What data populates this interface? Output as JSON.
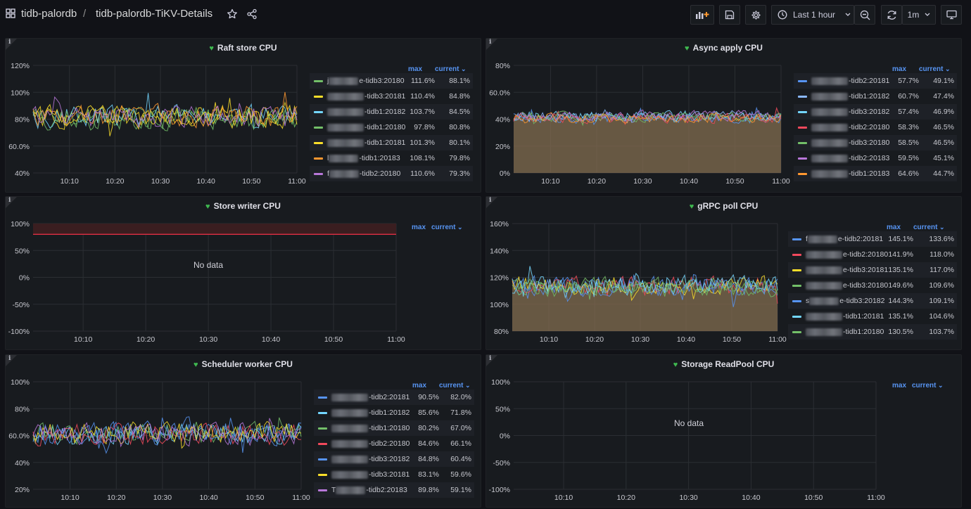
{
  "topbar": {
    "breadcrumb_folder": "tidb-palordb",
    "breadcrumb_separator": "/",
    "dashboard_title": "tidb-palordb-TiKV-Details",
    "time_range": "Last 1 hour",
    "refresh_interval": "1m"
  },
  "icons": {
    "apps": "grid-icon",
    "star": "star-icon",
    "share": "share-icon",
    "add_panel": "add-panel-icon",
    "save": "save-icon",
    "settings": "gear-icon",
    "clock": "clock-icon",
    "zoom_out": "zoom-out-icon",
    "refresh": "refresh-icon",
    "tv": "tv-mode-icon"
  },
  "colors": {
    "green": "#73bf69",
    "yellow": "#fade2a",
    "blue": "#5794f2",
    "light_blue": "#8ab8ff",
    "red": "#f2495c",
    "orange": "#ff9830",
    "purple": "#b877d9",
    "cyan": "#73d6ff"
  },
  "legend_headers": {
    "max": "max",
    "current": "current"
  },
  "panels": [
    {
      "id": "raft-store-cpu",
      "title": "Raft store CPU",
      "y_ticks": [
        "120%",
        "100%",
        "80%",
        "60.0%",
        "40%"
      ],
      "x_ticks": [
        "10:10",
        "10:20",
        "10:30",
        "10:40",
        "10:50",
        "11:00"
      ],
      "legend": [
        {
          "name": "-tidb3:20180",
          "prefix": "j",
          "mid": "e",
          "color": "#73bf69",
          "max": "111.6%",
          "current": "88.1%"
        },
        {
          "name": "-tidb3:20181",
          "prefix": "",
          "mid": "",
          "color": "#fade2a",
          "max": "110.4%",
          "current": "84.8%"
        },
        {
          "name": "-tidb1:20182",
          "prefix": "",
          "mid": "",
          "color": "#73d6ff",
          "max": "103.7%",
          "current": "84.5%"
        },
        {
          "name": "-tidb1:20180",
          "prefix": "",
          "mid": "",
          "color": "#73bf69",
          "max": "97.8%",
          "current": "80.8%"
        },
        {
          "name": "-tidb1:20181",
          "prefix": "",
          "mid": "",
          "color": "#fade2a",
          "max": "101.3%",
          "current": "80.1%"
        },
        {
          "name": "-tidb1:20183",
          "prefix": "l",
          "mid": "",
          "color": "#ff9830",
          "max": "108.1%",
          "current": "79.8%"
        },
        {
          "name": "-tidb2:20180",
          "prefix": "f",
          "mid": "",
          "color": "#b877d9",
          "max": "110.6%",
          "current": "79.3%"
        }
      ]
    },
    {
      "id": "async-apply-cpu",
      "title": "Async apply CPU",
      "y_ticks": [
        "80%",
        "60.0%",
        "40%",
        "20%",
        "0%"
      ],
      "x_ticks": [
        "10:10",
        "10:20",
        "10:30",
        "10:40",
        "10:50",
        "11:00"
      ],
      "legend": [
        {
          "name": "-tidb2:20181",
          "prefix": "",
          "mid": "",
          "color": "#5794f2",
          "max": "57.7%",
          "current": "49.1%"
        },
        {
          "name": "-tidb1:20182",
          "prefix": "",
          "mid": "",
          "color": "#8ab8ff",
          "max": "60.7%",
          "current": "47.4%"
        },
        {
          "name": "-tidb3:20182",
          "prefix": "",
          "mid": "",
          "color": "#73d6ff",
          "max": "57.4%",
          "current": "46.9%"
        },
        {
          "name": "-tidb2:20180",
          "prefix": "",
          "mid": "",
          "color": "#f2495c",
          "max": "58.3%",
          "current": "46.5%"
        },
        {
          "name": "-tidb3:20180",
          "prefix": "",
          "mid": "",
          "color": "#73bf69",
          "max": "58.5%",
          "current": "46.5%"
        },
        {
          "name": "-tidb2:20183",
          "prefix": "",
          "mid": "",
          "color": "#b877d9",
          "max": "59.5%",
          "current": "45.1%"
        },
        {
          "name": "-tidb1:20183",
          "prefix": "",
          "mid": "",
          "color": "#ff9830",
          "max": "64.6%",
          "current": "44.7%"
        }
      ]
    },
    {
      "id": "store-writer-cpu",
      "title": "Store writer CPU",
      "no_data": "No data",
      "y_ticks": [
        "100%",
        "50%",
        "0%",
        "-50%",
        "-100%"
      ],
      "x_ticks": [
        "10:10",
        "10:20",
        "10:30",
        "10:40",
        "10:50",
        "11:00"
      ],
      "legend": []
    },
    {
      "id": "grpc-poll-cpu",
      "title": "gRPC poll CPU",
      "y_ticks": [
        "160%",
        "140%",
        "120%",
        "100%",
        "80%"
      ],
      "x_ticks": [
        "10:10",
        "10:20",
        "10:30",
        "10:40",
        "10:50",
        "11:00"
      ],
      "legend": [
        {
          "name": "e-tidb2:20181",
          "prefix": "f",
          "mid": "",
          "color": "#5794f2",
          "max": "145.1%",
          "current": "133.6%"
        },
        {
          "name": "e-tidb2:20180",
          "prefix": "",
          "mid": "",
          "color": "#f2495c",
          "max": "141.9%",
          "current": "118.0%"
        },
        {
          "name": "e-tidb3:20181",
          "prefix": "",
          "mid": "",
          "color": "#fade2a",
          "max": "135.1%",
          "current": "117.0%"
        },
        {
          "name": "e-tidb3:20180",
          "prefix": "",
          "mid": "",
          "color": "#73bf69",
          "max": "149.6%",
          "current": "109.6%"
        },
        {
          "name": "e-tidb3:20182",
          "prefix": "s",
          "mid": "",
          "color": "#5794f2",
          "max": "144.3%",
          "current": "109.1%"
        },
        {
          "name": "-tidb1:20181",
          "prefix": "",
          "mid": "",
          "color": "#73d6ff",
          "max": "135.1%",
          "current": "104.6%"
        },
        {
          "name": "-tidb1:20180",
          "prefix": "",
          "mid": "",
          "color": "#73bf69",
          "max": "130.5%",
          "current": "103.7%"
        }
      ]
    },
    {
      "id": "scheduler-worker-cpu",
      "title": "Scheduler worker CPU",
      "y_ticks": [
        "100%",
        "80%",
        "60.0%",
        "40%",
        "20%"
      ],
      "x_ticks": [
        "10:10",
        "10:20",
        "10:30",
        "10:40",
        "10:50",
        "11:00"
      ],
      "legend": [
        {
          "name": "-tidb2:20181",
          "prefix": "",
          "mid": "",
          "color": "#5794f2",
          "max": "90.5%",
          "current": "82.0%"
        },
        {
          "name": "-tidb1:20182",
          "prefix": "",
          "mid": "",
          "color": "#73d6ff",
          "max": "85.6%",
          "current": "71.8%"
        },
        {
          "name": "-tidb1:20180",
          "prefix": "",
          "mid": "",
          "color": "#73bf69",
          "max": "80.2%",
          "current": "67.0%"
        },
        {
          "name": "-tidb2:20180",
          "prefix": "",
          "mid": "",
          "color": "#f2495c",
          "max": "84.6%",
          "current": "66.1%"
        },
        {
          "name": "-tidb3:20182",
          "prefix": "",
          "mid": "",
          "color": "#5794f2",
          "max": "84.8%",
          "current": "60.4%"
        },
        {
          "name": "-tidb3:20181",
          "prefix": "",
          "mid": "",
          "color": "#fade2a",
          "max": "83.1%",
          "current": "59.6%"
        },
        {
          "name": "-tidb2:20183",
          "prefix": "T",
          "mid": "",
          "color": "#b877d9",
          "max": "89.8%",
          "current": "59.1%"
        }
      ]
    },
    {
      "id": "storage-readpool-cpu",
      "title": "Storage ReadPool CPU",
      "no_data": "No data",
      "y_ticks": [
        "100%",
        "50%",
        "0%",
        "-50%",
        "-100%"
      ],
      "x_ticks": [
        "10:10",
        "10:20",
        "10:30",
        "10:40",
        "10:50",
        "11:00"
      ],
      "legend": []
    }
  ]
}
